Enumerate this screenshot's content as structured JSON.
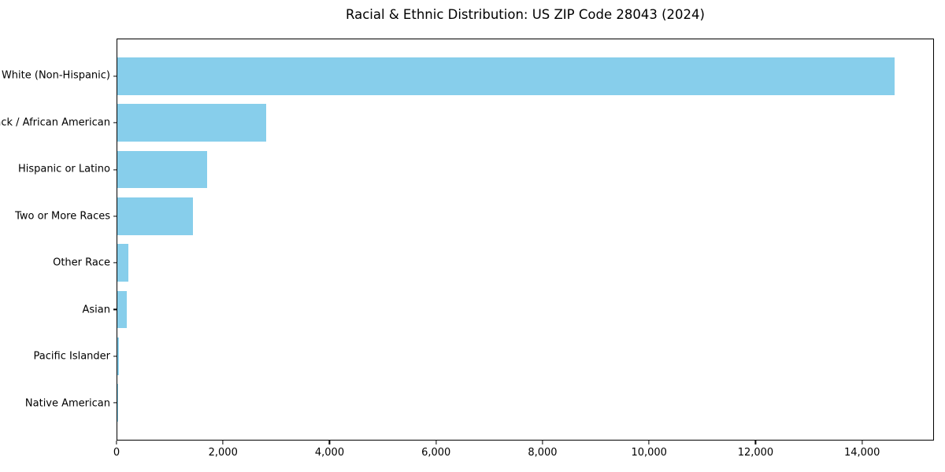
{
  "chart_data": {
    "type": "bar",
    "orientation": "horizontal",
    "title": "Racial & Ethnic Distribution: US ZIP Code 28043 (2024)",
    "categories": [
      "White (Non-Hispanic)",
      "Black / African American",
      "Hispanic or Latino",
      "Two or More Races",
      "Other Race",
      "Asian",
      "Pacific Islander",
      "Native American"
    ],
    "values": [
      14620,
      2800,
      1690,
      1420,
      210,
      175,
      25,
      15
    ],
    "xlabel": "",
    "ylabel": "",
    "xlim": [
      0,
      15350
    ],
    "x_ticks": [
      0,
      2000,
      4000,
      6000,
      8000,
      10000,
      12000,
      14000
    ],
    "x_tick_labels": [
      "0",
      "2,000",
      "4,000",
      "6,000",
      "8,000",
      "10,000",
      "12,000",
      "14,000"
    ],
    "grid": false,
    "legend": false,
    "bar_color": "#87CEEB",
    "axis_color": "#000000",
    "background_color": "#ffffff"
  }
}
